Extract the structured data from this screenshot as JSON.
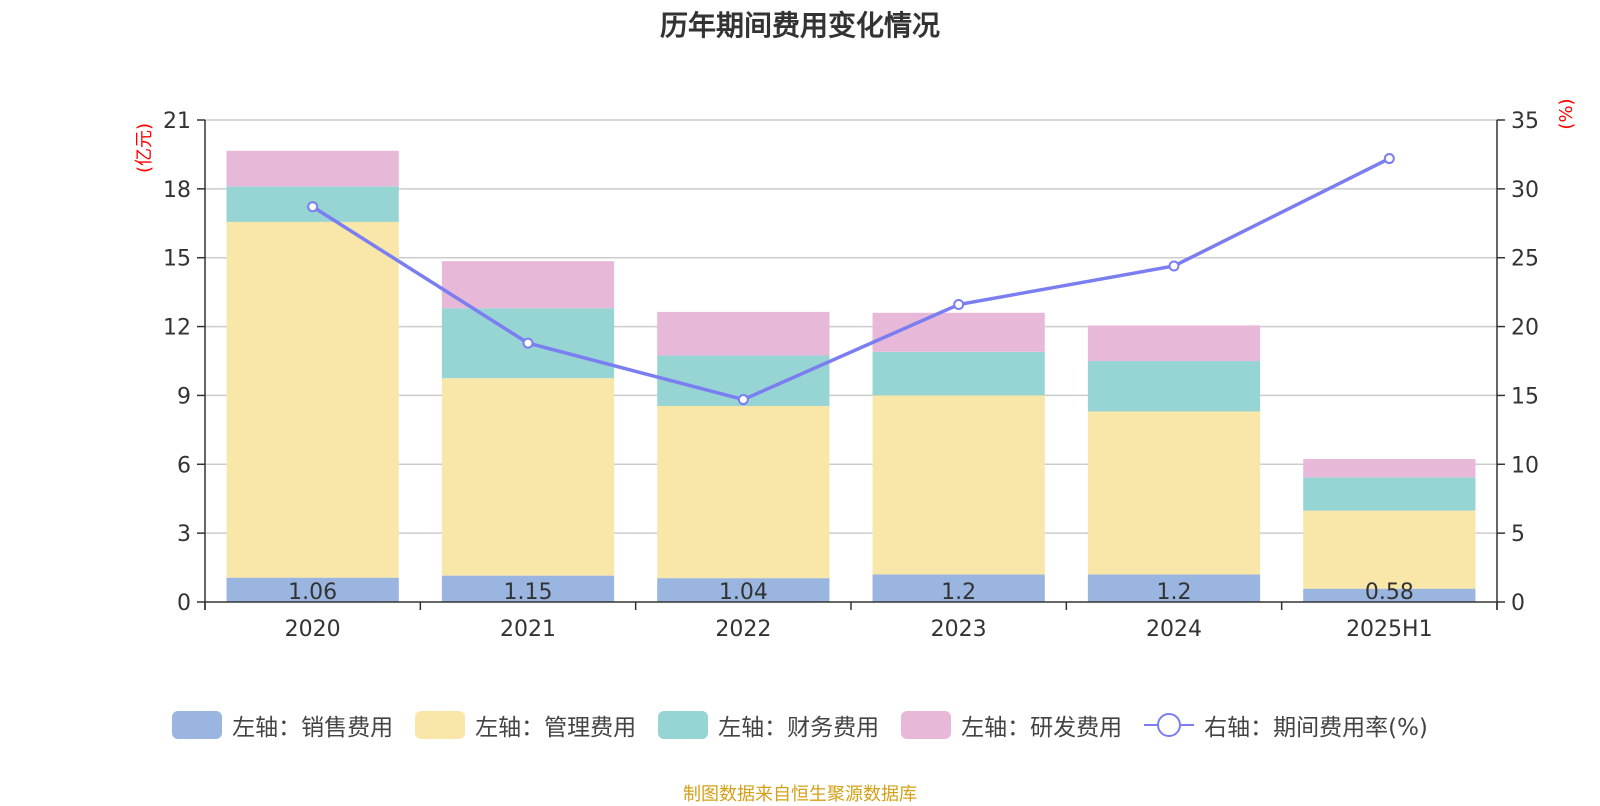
{
  "title": "历年期间费用变化情况",
  "source_note": "制图数据来自恒生聚源数据库",
  "colors": {
    "sales": "#9ab6e0",
    "admin": "#f8e7a8",
    "finance": "#97d4d4",
    "rd": "#e8b8d8",
    "rate": "#7b7ef0",
    "axis_unit": "#ff0000"
  },
  "chart_data": {
    "type": "bar",
    "stacked": true,
    "title": "历年期间费用变化情况",
    "categories": [
      "2020",
      "2021",
      "2022",
      "2023",
      "2024",
      "2025H1"
    ],
    "left_axis": {
      "label": "(亿元)",
      "ylim": [
        0,
        21
      ],
      "ticks": [
        "0",
        "3",
        "6",
        "9",
        "12",
        "15",
        "18",
        "21"
      ]
    },
    "right_axis": {
      "label": "(%)",
      "ylim": [
        0,
        35
      ],
      "ticks": [
        "0",
        "5",
        "10",
        "15",
        "20",
        "25",
        "30",
        "35"
      ]
    },
    "series": [
      {
        "name": "左轴：销售费用",
        "key": "sales",
        "axis": "left",
        "values": [
          1.06,
          1.15,
          1.04,
          1.2,
          1.2,
          0.58
        ],
        "labels": [
          "1.06",
          "1.15",
          "1.04",
          "1.2",
          "1.2",
          "0.58"
        ]
      },
      {
        "name": "左轴：管理费用",
        "key": "admin",
        "axis": "left",
        "values": [
          15.5,
          8.6,
          7.5,
          7.8,
          7.1,
          3.4
        ]
      },
      {
        "name": "左轴：财务费用",
        "key": "finance",
        "axis": "left",
        "values": [
          1.55,
          3.05,
          2.2,
          1.9,
          2.2,
          1.45
        ]
      },
      {
        "name": "左轴：研发费用",
        "key": "rd",
        "axis": "left",
        "values": [
          1.55,
          2.05,
          1.9,
          1.7,
          1.55,
          0.8
        ]
      },
      {
        "name": "右轴：期间费用率(%)",
        "key": "rate",
        "type": "line",
        "axis": "right",
        "values": [
          28.7,
          18.8,
          14.7,
          21.6,
          24.4,
          32.2
        ]
      }
    ],
    "grid": true,
    "legend_position": "bottom"
  }
}
